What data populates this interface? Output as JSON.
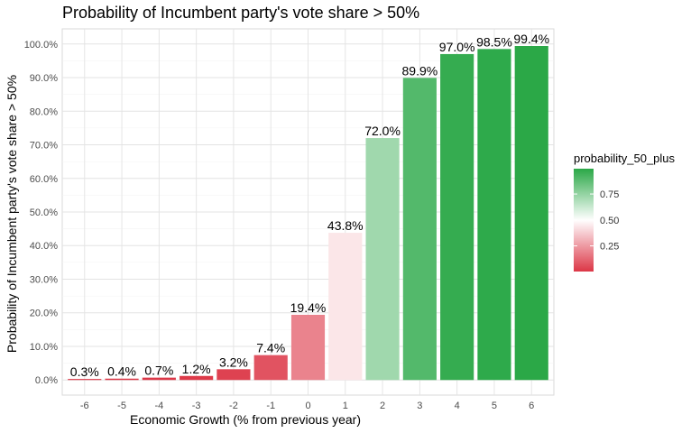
{
  "chart_data": {
    "type": "bar",
    "title": "Probability of Incumbent party's vote share > 50%",
    "xlabel": "Economic Growth (% from previous year)",
    "ylabel": "Probability of Incumbent party's vote share > 50%",
    "categories": [
      "-6",
      "-5",
      "-4",
      "-3",
      "-2",
      "-1",
      "0",
      "1",
      "2",
      "3",
      "4",
      "5",
      "6"
    ],
    "values": [
      0.003,
      0.004,
      0.007,
      0.012,
      0.032,
      0.074,
      0.194,
      0.438,
      0.72,
      0.899,
      0.97,
      0.985,
      0.994
    ],
    "data_labels": [
      "0.3%",
      "0.4%",
      "0.7%",
      "1.2%",
      "3.2%",
      "7.4%",
      "19.4%",
      "43.8%",
      "72.0%",
      "89.9%",
      "97.0%",
      "98.5%",
      "99.4%"
    ],
    "ylim": [
      0,
      1
    ],
    "y_ticks": [
      0,
      0.1,
      0.2,
      0.3,
      0.4,
      0.5,
      0.6,
      0.7,
      0.8,
      0.9,
      1.0
    ],
    "y_tick_labels": [
      "0.0%",
      "10.0%",
      "20.0%",
      "30.0%",
      "40.0%",
      "50.0%",
      "60.0%",
      "70.0%",
      "80.0%",
      "90.0%",
      "100.0%"
    ],
    "grid": true,
    "legend": {
      "title": "probability_50_plus",
      "position": "right",
      "range": [
        0.003,
        0.994
      ],
      "ticks": [
        0.25,
        0.5,
        0.75
      ],
      "tick_labels": [
        "0.25",
        "0.50",
        "0.75"
      ],
      "low_color": "#dc3545",
      "mid_color": "#ffffff",
      "high_color": "#28a745",
      "midpoint": 0.5
    }
  }
}
